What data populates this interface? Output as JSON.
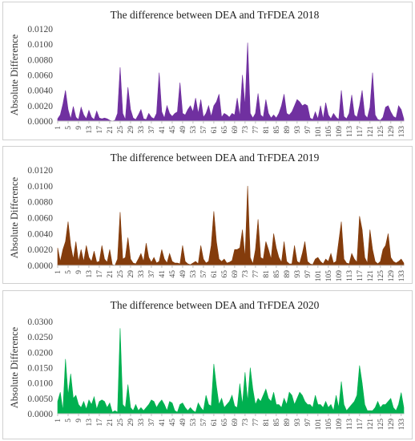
{
  "chart_data": [
    {
      "type": "area",
      "title": "The difference between DEA and TrFDEA 2018",
      "ylabel": "Absolute Difference",
      "xlabel": "",
      "color": "#7030a0",
      "ylim": [
        0,
        0.012
      ],
      "yticks": [
        "0.0000",
        "0.0020",
        "0.0040",
        "0.0060",
        "0.0080",
        "0.0100",
        "0.0120"
      ],
      "xticks": [
        1,
        5,
        9,
        13,
        17,
        21,
        25,
        29,
        33,
        37,
        41,
        45,
        49,
        53,
        57,
        61,
        65,
        69,
        73,
        77,
        81,
        85,
        89,
        93,
        97,
        101,
        105,
        109,
        113,
        117,
        121,
        125,
        129,
        133
      ],
      "x": [
        1,
        2,
        3,
        4,
        5,
        6,
        7,
        8,
        9,
        10,
        11,
        12,
        13,
        14,
        15,
        16,
        17,
        18,
        19,
        20,
        21,
        22,
        23,
        24,
        25,
        26,
        27,
        28,
        29,
        30,
        31,
        32,
        33,
        34,
        35,
        36,
        37,
        38,
        39,
        40,
        41,
        42,
        43,
        44,
        45,
        46,
        47,
        48,
        49,
        50,
        51,
        52,
        53,
        54,
        55,
        56,
        57,
        58,
        59,
        60,
        61,
        62,
        63,
        64,
        65,
        66,
        67,
        68,
        69,
        70,
        71,
        72,
        73,
        74,
        75,
        76,
        77,
        78,
        79,
        80,
        81,
        82,
        83,
        84,
        85,
        86,
        87,
        88,
        89,
        90,
        91,
        92,
        93,
        94,
        95,
        96,
        97,
        98,
        99,
        100,
        101,
        102,
        103,
        104,
        105,
        106,
        107,
        108,
        109,
        110,
        111,
        112,
        113,
        114,
        115,
        116,
        117,
        118,
        119,
        120,
        121,
        122,
        123,
        124,
        125,
        126,
        127,
        128,
        129,
        130,
        131,
        132,
        133,
        134
      ],
      "values": [
        0.0003,
        0.0008,
        0.0022,
        0.004,
        0.0015,
        0.0003,
        0.0019,
        0.0005,
        0.0002,
        0.0018,
        0.0008,
        0.0003,
        0.0014,
        0.0005,
        0.0002,
        0.0013,
        0.0004,
        0.0003,
        0.0004,
        0.0003,
        0.0001,
        0.0,
        0.0001,
        0.001,
        0.007,
        0.001,
        0.0002,
        0.0044,
        0.0015,
        0.0004,
        0.0002,
        0.0008,
        0.0015,
        0.0003,
        0.0002,
        0.001,
        0.0005,
        0.0003,
        0.001,
        0.0063,
        0.0012,
        0.0004,
        0.002,
        0.001,
        0.0006,
        0.001,
        0.0012,
        0.005,
        0.001,
        0.0008,
        0.0015,
        0.002,
        0.0012,
        0.003,
        0.001,
        0.0028,
        0.0005,
        0.001,
        0.002,
        0.0006,
        0.002,
        0.0025,
        0.0035,
        0.0005,
        0.001,
        0.0008,
        0.0005,
        0.001,
        0.0008,
        0.003,
        0.0006,
        0.006,
        0.002,
        0.0102,
        0.001,
        0.0004,
        0.001,
        0.0036,
        0.0008,
        0.0005,
        0.0028,
        0.001,
        0.0004,
        0.0008,
        0.0004,
        0.001,
        0.002,
        0.0035,
        0.001,
        0.0008,
        0.0012,
        0.002,
        0.0028,
        0.0025,
        0.002,
        0.0022,
        0.002,
        0.0004,
        0.0002,
        0.0012,
        0.0003,
        0.002,
        0.0003,
        0.0024,
        0.0008,
        0.0003,
        0.001,
        0.0005,
        0.0002,
        0.004,
        0.0006,
        0.0003,
        0.001,
        0.0034,
        0.0008,
        0.0005,
        0.002,
        0.004,
        0.0008,
        0.0004,
        0.0018,
        0.0063,
        0.0008,
        0.0002,
        0.0001,
        0.0005,
        0.0018,
        0.002,
        0.0012,
        0.0006,
        0.0004,
        0.002,
        0.0015,
        0.0003
      ]
    },
    {
      "type": "area",
      "title": "The difference between DEA and TrFDEA 2019",
      "ylabel": "Absolute Difference",
      "xlabel": "",
      "color": "#843c0c",
      "ylim": [
        0,
        0.012
      ],
      "yticks": [
        "0.0000",
        "0.0020",
        "0.0040",
        "0.0060",
        "0.0080",
        "0.0100",
        "0.0120"
      ],
      "xticks": [
        1,
        5,
        9,
        13,
        17,
        21,
        25,
        29,
        33,
        37,
        41,
        45,
        49,
        53,
        57,
        61,
        65,
        69,
        73,
        77,
        81,
        85,
        89,
        93,
        97,
        101,
        105,
        109,
        113,
        117,
        121,
        125,
        129,
        133
      ],
      "x": [
        1,
        2,
        3,
        4,
        5,
        6,
        7,
        8,
        9,
        10,
        11,
        12,
        13,
        14,
        15,
        16,
        17,
        18,
        19,
        20,
        21,
        22,
        23,
        24,
        25,
        26,
        27,
        28,
        29,
        30,
        31,
        32,
        33,
        34,
        35,
        36,
        37,
        38,
        39,
        40,
        41,
        42,
        43,
        44,
        45,
        46,
        47,
        48,
        49,
        50,
        51,
        52,
        53,
        54,
        55,
        56,
        57,
        58,
        59,
        60,
        61,
        62,
        63,
        64,
        65,
        66,
        67,
        68,
        69,
        70,
        71,
        72,
        73,
        74,
        75,
        76,
        77,
        78,
        79,
        80,
        81,
        82,
        83,
        84,
        85,
        86,
        87,
        88,
        89,
        90,
        91,
        92,
        93,
        94,
        95,
        96,
        97,
        98,
        99,
        100,
        101,
        102,
        103,
        104,
        105,
        106,
        107,
        108,
        109,
        110,
        111,
        112,
        113,
        114,
        115,
        116,
        117,
        118,
        119,
        120,
        121,
        122,
        123,
        124,
        125,
        126,
        127,
        128,
        129,
        130,
        131,
        132,
        133,
        134
      ],
      "values": [
        0.0022,
        0.0005,
        0.002,
        0.003,
        0.0055,
        0.0025,
        0.0008,
        0.003,
        0.0005,
        0.002,
        0.0005,
        0.0025,
        0.001,
        0.0005,
        0.0018,
        0.0004,
        0.0005,
        0.0025,
        0.0008,
        0.0004,
        0.002,
        0.0001,
        0.0,
        0.0008,
        0.0067,
        0.0008,
        0.001,
        0.0035,
        0.0008,
        0.0003,
        0.0002,
        0.0008,
        0.0015,
        0.0005,
        0.0028,
        0.001,
        0.0004,
        0.001,
        0.0003,
        0.0005,
        0.002,
        0.0008,
        0.0003,
        0.0015,
        0.0005,
        0.0003,
        0.0003,
        0.0002,
        0.0025,
        0.0005,
        0.0002,
        0.0001,
        0.0003,
        0.0005,
        0.0002,
        0.0025,
        0.0008,
        0.0003,
        0.0005,
        0.0025,
        0.0068,
        0.003,
        0.0008,
        0.0005,
        0.0008,
        0.0003,
        0.0004,
        0.0006,
        0.002,
        0.002,
        0.0022,
        0.0045,
        0.001,
        0.01,
        0.001,
        0.0002,
        0.002,
        0.0058,
        0.001,
        0.0008,
        0.003,
        0.002,
        0.0008,
        0.004,
        0.0022,
        0.001,
        0.0004,
        0.003,
        0.0005,
        0.0002,
        0.0002,
        0.0025,
        0.0005,
        0.0003,
        0.0015,
        0.003,
        0.0005,
        0.0002,
        0.0001,
        0.0008,
        0.001,
        0.0005,
        0.0002,
        0.0008,
        0.0005,
        0.0015,
        0.0003,
        0.0005,
        0.003,
        0.0055,
        0.0008,
        0.0003,
        0.0002,
        0.0015,
        0.0008,
        0.0004,
        0.0062,
        0.0045,
        0.001,
        0.0003,
        0.0045,
        0.002,
        0.0005,
        0.0002,
        0.0005,
        0.002,
        0.0025,
        0.004,
        0.001,
        0.0005,
        0.0003,
        0.0005,
        0.0008,
        0.0003
      ]
    },
    {
      "type": "area",
      "title": "The difference between DEA and TrFDEA 2020",
      "ylabel": "Absolute Difference",
      "xlabel": "",
      "color": "#00b050",
      "ylim": [
        0,
        0.03
      ],
      "yticks": [
        "0.0000",
        "0.0050",
        "0.0100",
        "0.0150",
        "0.0200",
        "0.0250",
        "0.0300"
      ],
      "xticks": [
        1,
        5,
        9,
        13,
        17,
        21,
        25,
        29,
        33,
        37,
        41,
        45,
        49,
        53,
        57,
        61,
        65,
        69,
        73,
        77,
        81,
        85,
        89,
        93,
        97,
        101,
        105,
        109,
        113,
        117,
        121,
        125,
        129,
        133
      ],
      "x": [
        1,
        2,
        3,
        4,
        5,
        6,
        7,
        8,
        9,
        10,
        11,
        12,
        13,
        14,
        15,
        16,
        17,
        18,
        19,
        20,
        21,
        22,
        23,
        24,
        25,
        26,
        27,
        28,
        29,
        30,
        31,
        32,
        33,
        34,
        35,
        36,
        37,
        38,
        39,
        40,
        41,
        42,
        43,
        44,
        45,
        46,
        47,
        48,
        49,
        50,
        51,
        52,
        53,
        54,
        55,
        56,
        57,
        58,
        59,
        60,
        61,
        62,
        63,
        64,
        65,
        66,
        67,
        68,
        69,
        70,
        71,
        72,
        73,
        74,
        75,
        76,
        77,
        78,
        79,
        80,
        81,
        82,
        83,
        84,
        85,
        86,
        87,
        88,
        89,
        90,
        91,
        92,
        93,
        94,
        95,
        96,
        97,
        98,
        99,
        100,
        101,
        102,
        103,
        104,
        105,
        106,
        107,
        108,
        109,
        110,
        111,
        112,
        113,
        114,
        115,
        116,
        117,
        118,
        119,
        120,
        121,
        122,
        123,
        124,
        125,
        126,
        127,
        128,
        129,
        130,
        131,
        132,
        133,
        134
      ],
      "values": [
        0.004,
        0.007,
        0.001,
        0.0178,
        0.006,
        0.013,
        0.005,
        0.006,
        0.003,
        0.002,
        0.004,
        0.0015,
        0.0045,
        0.003,
        0.0055,
        0.0015,
        0.004,
        0.0045,
        0.004,
        0.002,
        0.0035,
        0.0005,
        0.001,
        0.0005,
        0.0278,
        0.003,
        0.002,
        0.0095,
        0.002,
        0.001,
        0.003,
        0.001,
        0.002,
        0.001,
        0.002,
        0.003,
        0.0045,
        0.004,
        0.002,
        0.0035,
        0.0045,
        0.003,
        0.001,
        0.004,
        0.0035,
        0.001,
        0.0005,
        0.003,
        0.0035,
        0.002,
        0.001,
        0.002,
        0.001,
        0.0005,
        0.0035,
        0.002,
        0.001,
        0.006,
        0.003,
        0.0025,
        0.0162,
        0.009,
        0.003,
        0.005,
        0.002,
        0.003,
        0.004,
        0.006,
        0.0025,
        0.002,
        0.0098,
        0.003,
        0.0135,
        0.004,
        0.015,
        0.008,
        0.003,
        0.005,
        0.004,
        0.006,
        0.008,
        0.005,
        0.004,
        0.007,
        0.003,
        0.003,
        0.002,
        0.005,
        0.003,
        0.007,
        0.006,
        0.003,
        0.005,
        0.007,
        0.006,
        0.004,
        0.003,
        0.003,
        0.002,
        0.006,
        0.003,
        0.003,
        0.002,
        0.004,
        0.002,
        0.003,
        0.001,
        0.006,
        0.002,
        0.0105,
        0.003,
        0.001,
        0.002,
        0.003,
        0.004,
        0.006,
        0.0157,
        0.01,
        0.003,
        0.001,
        0.001,
        0.001,
        0.002,
        0.004,
        0.002,
        0.003,
        0.003,
        0.004,
        0.005,
        0.002,
        0.001,
        0.003,
        0.0069,
        0.002
      ]
    }
  ]
}
